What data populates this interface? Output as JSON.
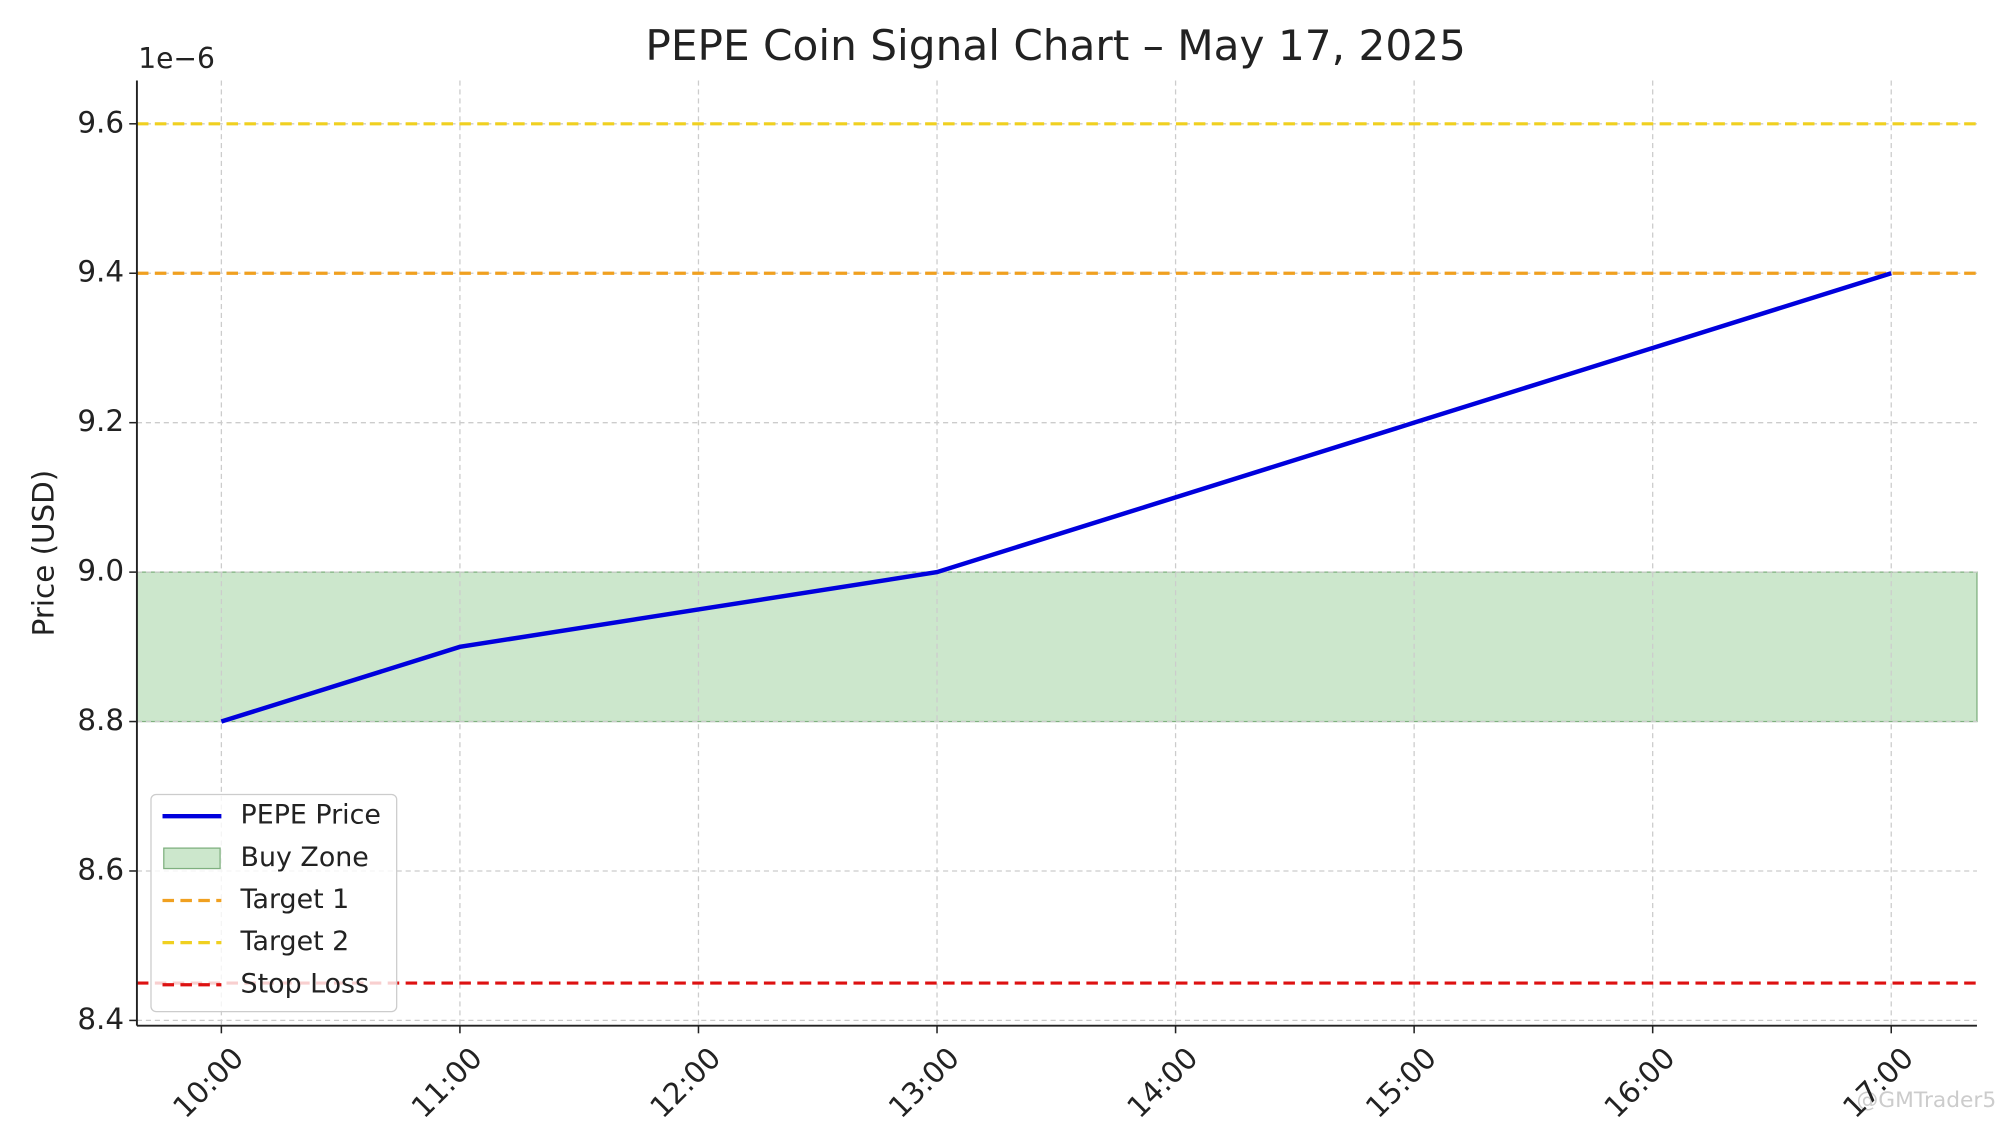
{
  "chart_data": {
    "type": "line",
    "title": "PEPE Coin Signal Chart – May 17, 2025",
    "y_label": "Price (USD)",
    "y_offset_label": "1e−6",
    "categories": [
      "10:00",
      "11:00",
      "12:00",
      "13:00",
      "14:00",
      "15:00",
      "16:00",
      "17:00"
    ],
    "series": [
      {
        "name": "PEPE Price",
        "color": "#0000dd",
        "values": [
          8.8,
          8.9,
          8.95,
          9.0,
          9.1,
          9.2,
          9.3,
          9.4
        ]
      }
    ],
    "bands": [
      {
        "name": "Buy Zone",
        "from": 8.8,
        "to": 9.0,
        "color": "#a3d3a3"
      }
    ],
    "reference_lines": [
      {
        "name": "Target 1",
        "value": 9.4,
        "color": "#f0a020"
      },
      {
        "name": "Target 2",
        "value": 9.6,
        "color": "#f0d020"
      },
      {
        "name": "Stop Loss",
        "value": 8.45,
        "color": "#dd1111"
      }
    ],
    "ylim": [
      8.393,
      9.658
    ],
    "yticks": [
      {
        "value": 8.4,
        "label": "8.4"
      },
      {
        "value": 8.6,
        "label": "8.6"
      },
      {
        "value": 8.8,
        "label": "8.8"
      },
      {
        "value": 9.0,
        "label": "9.0"
      },
      {
        "value": 9.2,
        "label": "9.2"
      },
      {
        "value": 9.4,
        "label": "9.4"
      },
      {
        "value": 9.6,
        "label": "9.6"
      }
    ],
    "grid": true,
    "legend": "lower left",
    "watermark": "@GMTrader5"
  }
}
